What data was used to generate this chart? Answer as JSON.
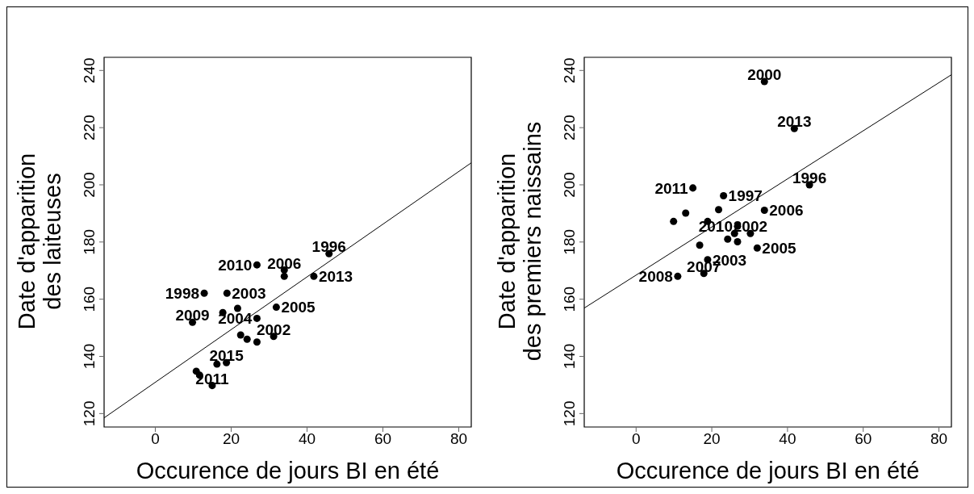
{
  "chart_data": [
    {
      "type": "scatter",
      "xlabel": "Occurence de jours BI en été",
      "ylabel": "Date d'apparition\ndes laiteuses",
      "xlim": [
        -13.5,
        83.3
      ],
      "ylim": [
        115.3,
        244.6
      ],
      "xticks": [
        0,
        20,
        40,
        60,
        80
      ],
      "yticks": [
        120,
        140,
        160,
        180,
        200,
        220,
        240
      ],
      "grid": false,
      "legend": false,
      "marker": "circle",
      "series": [
        {
          "type": "scatter",
          "color": "#000000",
          "x": [
            45.8,
            26.8,
            34,
            34,
            41.8,
            12.9,
            18.9,
            17.8,
            21.7,
            31.9,
            26.8,
            9.8,
            22.5,
            24.2,
            26.8,
            31.2,
            18.75,
            16.25,
            10.8,
            11.7,
            15
          ],
          "values": [
            175.9,
            172,
            170.2,
            168,
            168,
            162.1,
            162.1,
            155.3,
            156.8,
            157.2,
            153.3,
            151.9,
            147.5,
            146,
            145,
            147,
            137.8,
            137.3,
            134.8,
            133.4,
            129.8
          ]
        },
        {
          "type": "line",
          "color": "#000000",
          "marker": "none",
          "line_style": "solid",
          "x": [
            -13.5,
            83.3
          ],
          "values": [
            118.5,
            207.7
          ]
        }
      ],
      "annotations": [
        {
          "text": "1996",
          "x": 45.8,
          "y": 175.9
        },
        {
          "text": "2010",
          "x": 26.8,
          "y": 172
        },
        {
          "text": "2006",
          "x": 34,
          "y": 170.2
        },
        {
          "text": "2013",
          "x": 41.8,
          "y": 168
        },
        {
          "text": "1998",
          "x": 12.9,
          "y": 162.1
        },
        {
          "text": "2003",
          "x": 18.9,
          "y": 162.1
        },
        {
          "text": "2005",
          "x": 31.9,
          "y": 157.2
        },
        {
          "text": "2004",
          "x": 26.8,
          "y": 153.3
        },
        {
          "text": "2009",
          "x": 9.8,
          "y": 151.9
        },
        {
          "text": "2002",
          "x": 31.2,
          "y": 147
        },
        {
          "text": "2015",
          "x": 18.75,
          "y": 137.8
        },
        {
          "text": "2011",
          "x": 15,
          "y": 129.8
        }
      ]
    },
    {
      "type": "scatter",
      "xlabel": "Occurence de jours BI en été",
      "ylabel": "Date d'apparition\ndes premiers naissains",
      "xlim": [
        -13.7,
        83.3
      ],
      "ylim": [
        115.3,
        244.6
      ],
      "xticks": [
        0,
        20,
        40,
        60,
        80
      ],
      "yticks": [
        120,
        140,
        160,
        180,
        200,
        220,
        240
      ],
      "grid": false,
      "legend": false,
      "marker": "circle",
      "series": [
        {
          "type": "scatter",
          "color": "#000000",
          "x": [
            33.9,
            41.8,
            45.8,
            15,
            23.1,
            21.8,
            33.9,
            13.1,
            9.9,
            18.9,
            26.8,
            26,
            30.2,
            24.2,
            26.8,
            16.8,
            32,
            18.9,
            11,
            17.9
          ],
          "values": [
            236.1,
            219.7,
            200,
            198.9,
            196.2,
            191.3,
            191.1,
            190.1,
            187.2,
            187.2,
            185.5,
            183,
            183,
            181,
            180.1,
            178.9,
            177.9,
            173.8,
            168,
            169
          ]
        },
        {
          "type": "line",
          "color": "#000000",
          "marker": "none",
          "line_style": "solid",
          "x": [
            -13.7,
            83.3
          ],
          "values": [
            156.9,
            238.5
          ]
        }
      ],
      "annotations": [
        {
          "text": "2000",
          "x": 33.9,
          "y": 236.1
        },
        {
          "text": "2013",
          "x": 41.8,
          "y": 219.7
        },
        {
          "text": "1996",
          "x": 45.8,
          "y": 200
        },
        {
          "text": "2011",
          "x": 15,
          "y": 198.9
        },
        {
          "text": "1997",
          "x": 23.1,
          "y": 196.2
        },
        {
          "text": "2006",
          "x": 33.9,
          "y": 191.1
        },
        {
          "text": "2010",
          "x": 26.8,
          "y": 185.5
        },
        {
          "text": "2002",
          "x": 30.2,
          "y": 183
        },
        {
          "text": "2005",
          "x": 32,
          "y": 177.9
        },
        {
          "text": "2003",
          "x": 18.9,
          "y": 173.8
        },
        {
          "text": "2008",
          "x": 11,
          "y": 168
        },
        {
          "text": "2007",
          "x": 17.9,
          "y": 169
        }
      ]
    }
  ]
}
